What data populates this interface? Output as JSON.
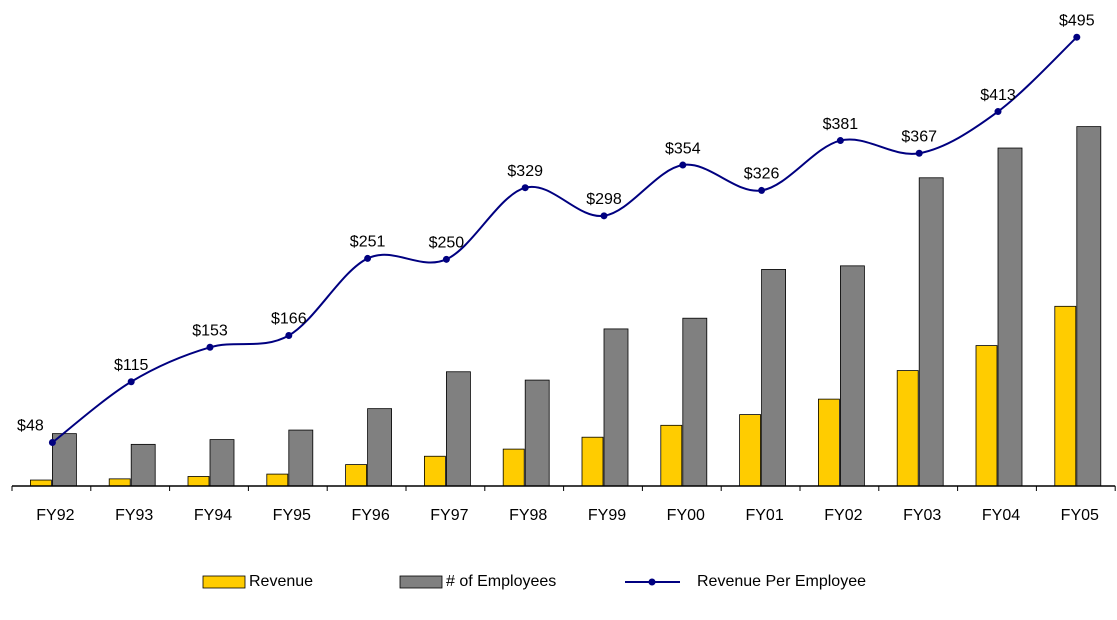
{
  "chart_data": {
    "type": "bar",
    "categories": [
      "FY92",
      "FY93",
      "FY94",
      "FY95",
      "FY96",
      "FY97",
      "FY98",
      "FY99",
      "FY00",
      "FY01",
      "FY02",
      "FY03",
      "FY04",
      "FY05"
    ],
    "ylim": [
      0,
      400
    ],
    "y2lim": [
      0,
      525
    ],
    "series": [
      {
        "name": "Revenue",
        "type": "bar",
        "color": "#ffcc00",
        "values": [
          5,
          6,
          8,
          10,
          18,
          25,
          31,
          41,
          51,
          60,
          73,
          97,
          118,
          151
        ]
      },
      {
        "name": "# of Employees",
        "type": "bar",
        "color": "#808080",
        "values": [
          44,
          35,
          39,
          47,
          65,
          96,
          89,
          132,
          141,
          182,
          185,
          259,
          284,
          302
        ]
      },
      {
        "name": "Revenue Per Employee",
        "type": "line",
        "axis": "y2",
        "color": "#000080",
        "values": [
          48,
          115,
          153,
          166,
          251,
          250,
          329,
          298,
          354,
          326,
          381,
          367,
          413,
          495
        ],
        "value_labels": [
          "$48",
          "$115",
          "$153",
          "$166",
          "$251",
          "$250",
          "$329",
          "$298",
          "$354",
          "$326",
          "$381",
          "$367",
          "$413",
          "$495"
        ]
      }
    ]
  }
}
